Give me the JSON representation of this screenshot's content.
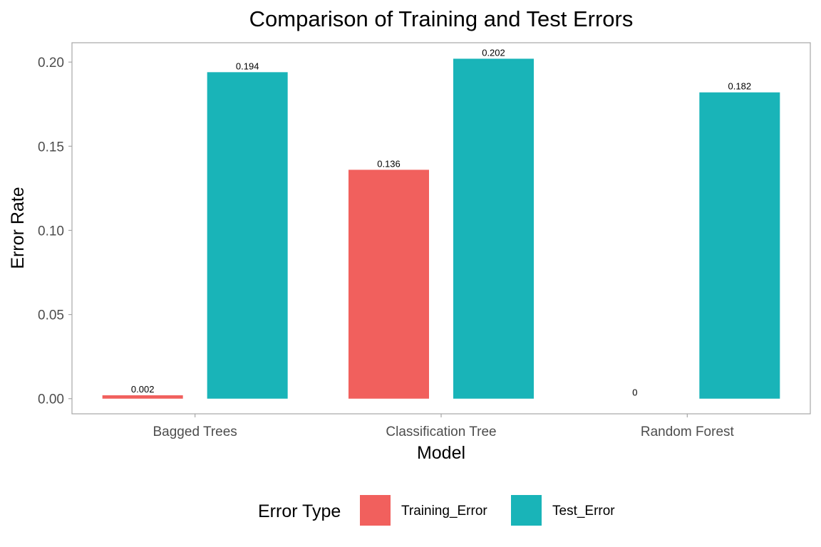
{
  "chart_data": {
    "type": "bar",
    "title": "Comparison of Training and Test Errors",
    "xlabel": "Model",
    "ylabel": "Error Rate",
    "categories": [
      "Bagged Trees",
      "Classification Tree",
      "Random Forest"
    ],
    "series": [
      {
        "name": "Training_Error",
        "values": [
          0.002,
          0.136,
          0
        ],
        "labels": [
          "0.002",
          "0.136",
          "0"
        ],
        "color": "#F1605D"
      },
      {
        "name": "Test_Error",
        "values": [
          0.194,
          0.202,
          0.182
        ],
        "labels": [
          "0.194",
          "0.202",
          "0.182"
        ],
        "color": "#19B4B8"
      }
    ],
    "ylim": [
      -0.009,
      0.2115
    ],
    "yticks": [
      0.0,
      0.05,
      0.1,
      0.15,
      0.2
    ],
    "ytick_labels": [
      "0.00",
      "0.05",
      "0.10",
      "0.15",
      "0.20"
    ],
    "grid": false,
    "legend": {
      "title": "Error Type",
      "position": "bottom",
      "entries": [
        "Training_Error",
        "Test_Error"
      ]
    },
    "colors": {
      "panel_border": "#a6a6a6",
      "tick_text": "#4d4d4d",
      "background": "#ffffff"
    }
  }
}
